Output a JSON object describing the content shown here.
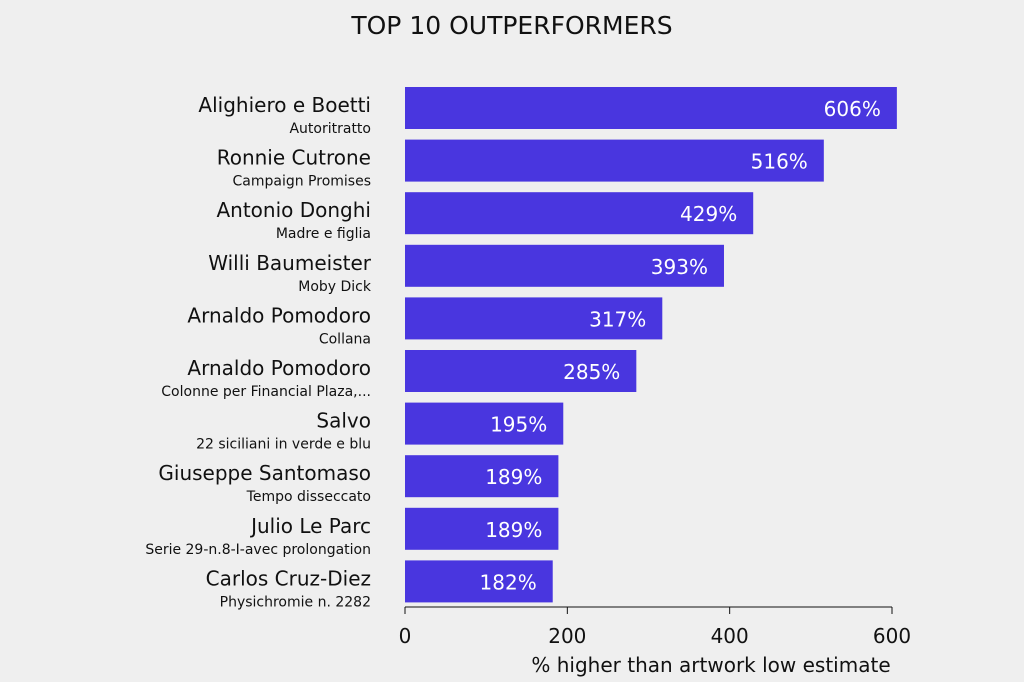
{
  "chart_data": {
    "type": "bar",
    "orientation": "horizontal",
    "title": "TOP 10 OUTPERFORMERS",
    "xlabel": "% higher than artwork low estimate",
    "ylabel": "",
    "xlim": [
      0,
      600
    ],
    "xticks": [
      "0",
      "200",
      "400",
      "600"
    ],
    "bar_color": "#4936df",
    "categories": [
      {
        "artist": "Alighiero e Boetti",
        "work": "Autoritratto"
      },
      {
        "artist": "Ronnie Cutrone",
        "work": "Campaign Promises"
      },
      {
        "artist": "Antonio Donghi",
        "work": "Madre e figlia"
      },
      {
        "artist": "Willi Baumeister",
        "work": "Moby Dick"
      },
      {
        "artist": "Arnaldo Pomodoro",
        "work": "Collana"
      },
      {
        "artist": "Arnaldo Pomodoro",
        "work": "Colonne per Financial Plaza,..."
      },
      {
        "artist": "Salvo",
        "work": "22 siciliani in verde e blu"
      },
      {
        "artist": "Giuseppe Santomaso",
        "work": "Tempo disseccato"
      },
      {
        "artist": "Julio Le Parc",
        "work": "Serie 29-n.8-I-avec prolongation"
      },
      {
        "artist": "Carlos Cruz-Diez",
        "work": "Physichromie n. 2282"
      }
    ],
    "values": [
      606,
      516,
      429,
      393,
      317,
      285,
      195,
      189,
      189,
      182
    ],
    "value_labels": [
      "606%",
      "516%",
      "429%",
      "393%",
      "317%",
      "285%",
      "195%",
      "189%",
      "189%",
      "182%"
    ],
    "grid": false,
    "legend": "none"
  }
}
